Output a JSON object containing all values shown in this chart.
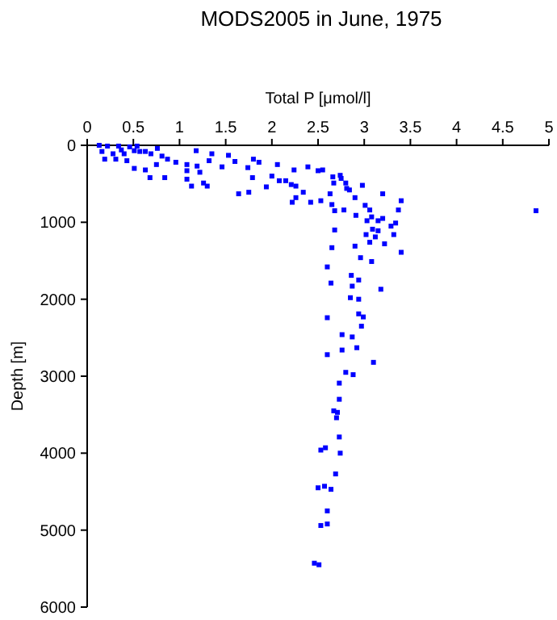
{
  "chart_data": {
    "type": "scatter",
    "title": "MODS2005 in June, 1975",
    "xlabel": "Total P [μmol/l]",
    "ylabel": "Depth [m]",
    "xlim": [
      0,
      5
    ],
    "xticks": [
      0,
      0.5,
      1,
      1.5,
      2,
      2.5,
      3,
      3.5,
      4,
      4.5,
      5
    ],
    "ylim": [
      6000,
      0
    ],
    "yticks": [
      0,
      1000,
      2000,
      3000,
      4000,
      5000,
      6000
    ],
    "grid": false,
    "marker": "square",
    "series": [
      {
        "color": "#0000ff",
        "x": [
          0.13,
          0.22,
          0.34,
          0.46,
          0.54,
          0.16,
          0.28,
          0.4,
          0.19,
          0.31,
          0.43,
          0.37,
          0.51,
          0.57,
          0.63,
          0.69,
          0.76,
          0.81,
          0.87,
          0.96,
          0.51,
          0.63,
          0.68,
          0.84,
          0.75,
          1.08,
          1.08,
          1.18,
          1.19,
          1.22,
          1.08,
          1.13,
          1.26,
          1.3,
          1.32,
          1.35,
          1.46,
          1.53,
          1.6,
          1.74,
          1.8,
          1.86,
          1.64,
          1.75,
          1.79,
          1.94,
          2.0,
          2.06,
          2.08,
          2.15,
          2.21,
          2.26,
          2.24,
          2.22,
          2.26,
          2.34,
          2.39,
          2.42,
          2.5,
          2.53,
          2.55,
          2.63,
          2.65,
          2.66,
          2.67,
          2.68,
          2.68,
          2.65,
          2.74,
          2.75,
          2.78,
          2.8,
          2.81,
          2.84,
          2.9,
          2.91,
          2.98,
          3.01,
          3.02,
          3.03,
          3.06,
          3.08,
          3.09,
          3.06,
          3.08,
          2.96,
          2.9,
          3.15,
          3.15,
          3.12,
          3.2,
          3.2,
          3.22,
          3.29,
          3.32,
          3.34,
          3.37,
          3.4,
          3.4,
          4.86,
          2.6,
          2.86,
          2.94,
          2.87,
          2.64,
          3.18,
          2.85,
          2.94,
          2.94,
          2.99,
          2.6,
          2.97,
          2.76,
          2.87,
          2.76,
          2.92,
          2.6,
          3.1,
          2.8,
          2.88,
          2.73,
          2.73,
          2.67,
          2.71,
          2.7,
          2.73,
          2.53,
          2.58,
          2.74,
          2.69,
          2.5,
          2.57,
          2.64,
          2.6,
          2.53,
          2.6,
          2.46,
          2.51
        ],
        "values": [
          0,
          10,
          10,
          20,
          10,
          80,
          110,
          110,
          180,
          180,
          200,
          60,
          70,
          80,
          80,
          110,
          40,
          140,
          180,
          220,
          300,
          320,
          420,
          420,
          250,
          250,
          330,
          70,
          270,
          350,
          440,
          530,
          490,
          530,
          200,
          110,
          280,
          130,
          210,
          290,
          180,
          220,
          630,
          610,
          420,
          540,
          400,
          250,
          460,
          460,
          510,
          530,
          320,
          740,
          680,
          610,
          280,
          740,
          330,
          720,
          320,
          630,
          770,
          410,
          490,
          850,
          1100,
          1330,
          390,
          430,
          840,
          490,
          560,
          580,
          680,
          910,
          520,
          780,
          1160,
          980,
          840,
          930,
          1090,
          1260,
          1510,
          1460,
          1310,
          1110,
          980,
          1190,
          630,
          950,
          1280,
          1050,
          1160,
          1010,
          840,
          720,
          1390,
          850,
          1580,
          1690,
          1750,
          1830,
          1790,
          1870,
          1980,
          2000,
          2190,
          2230,
          2240,
          2350,
          2460,
          2490,
          2660,
          2630,
          2720,
          2820,
          2950,
          2980,
          3090,
          3300,
          3450,
          3470,
          3540,
          3790,
          3960,
          3930,
          4000,
          4270,
          4450,
          4430,
          4470,
          4750,
          4940,
          4920,
          5430,
          5450
        ]
      }
    ]
  }
}
